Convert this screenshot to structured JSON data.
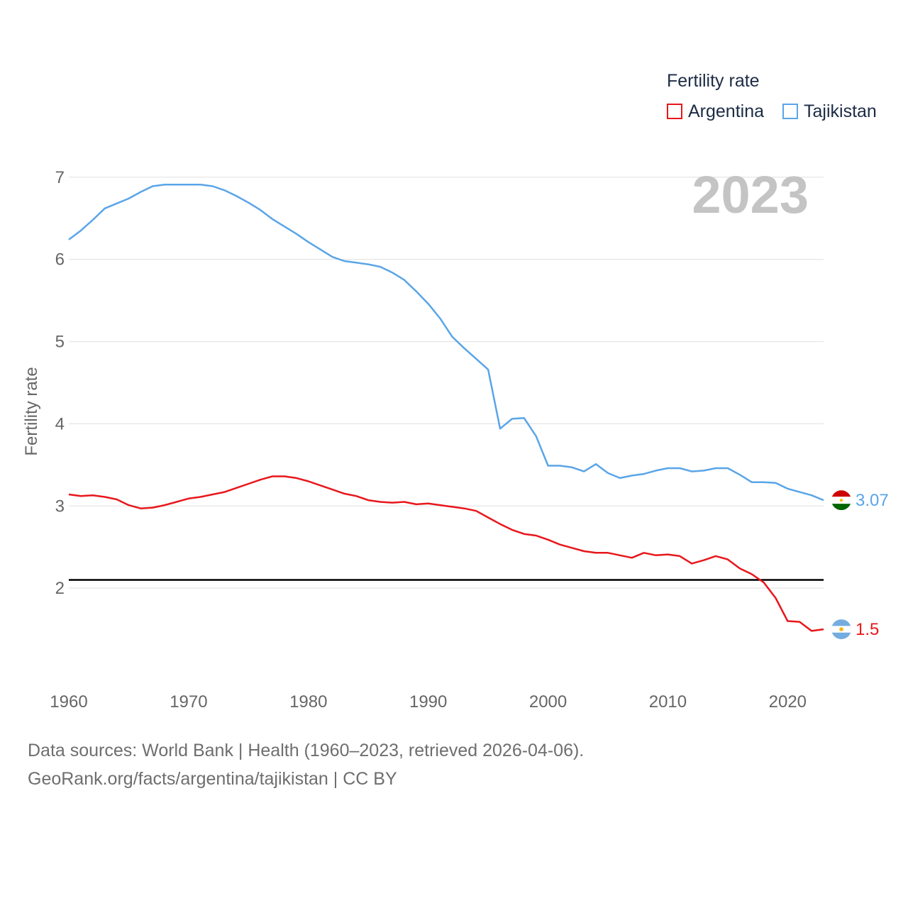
{
  "chart_data": {
    "type": "line",
    "legend_title": "Fertility rate",
    "ylabel": "Fertility rate",
    "xlabel": "",
    "year_label": "2023",
    "xlim": [
      1960,
      2023
    ],
    "ylim": [
      1.0,
      7.3
    ],
    "x_ticks": [
      1960,
      1970,
      1980,
      1990,
      2000,
      2010,
      2020
    ],
    "y_ticks": [
      2,
      3,
      4,
      5,
      6,
      7
    ],
    "reference_line": 2.1,
    "series": [
      {
        "name": "Argentina",
        "color": "#e8171c",
        "flag": "argentina-flag-icon",
        "end_label": "1.5",
        "x": [
          1960,
          1961,
          1962,
          1963,
          1964,
          1965,
          1966,
          1967,
          1968,
          1969,
          1970,
          1971,
          1972,
          1973,
          1974,
          1975,
          1976,
          1977,
          1978,
          1979,
          1980,
          1981,
          1982,
          1983,
          1984,
          1985,
          1986,
          1987,
          1988,
          1989,
          1990,
          1991,
          1992,
          1993,
          1994,
          1995,
          1996,
          1997,
          1998,
          1999,
          2000,
          2001,
          2002,
          2003,
          2004,
          2005,
          2006,
          2007,
          2008,
          2009,
          2010,
          2011,
          2012,
          2013,
          2014,
          2015,
          2016,
          2017,
          2018,
          2019,
          2020,
          2021,
          2022,
          2023
        ],
        "values": [
          3.14,
          3.12,
          3.13,
          3.11,
          3.08,
          3.01,
          2.97,
          2.98,
          3.01,
          3.05,
          3.09,
          3.11,
          3.14,
          3.17,
          3.22,
          3.27,
          3.32,
          3.36,
          3.36,
          3.34,
          3.3,
          3.25,
          3.2,
          3.15,
          3.12,
          3.07,
          3.05,
          3.04,
          3.05,
          3.02,
          3.03,
          3.01,
          2.99,
          2.97,
          2.94,
          2.86,
          2.78,
          2.71,
          2.66,
          2.64,
          2.59,
          2.53,
          2.49,
          2.45,
          2.43,
          2.43,
          2.4,
          2.37,
          2.43,
          2.4,
          2.41,
          2.39,
          2.3,
          2.34,
          2.39,
          2.35,
          2.24,
          2.17,
          2.07,
          1.88,
          1.6,
          1.59,
          1.48,
          1.5
        ]
      },
      {
        "name": "Tajikistan",
        "color": "#5aa5e8",
        "flag": "tajikistan-flag-icon",
        "end_label": "3.07",
        "x": [
          1960,
          1961,
          1962,
          1963,
          1964,
          1965,
          1966,
          1967,
          1968,
          1969,
          1970,
          1971,
          1972,
          1973,
          1974,
          1975,
          1976,
          1977,
          1978,
          1979,
          1980,
          1981,
          1982,
          1983,
          1984,
          1985,
          1986,
          1987,
          1988,
          1989,
          1990,
          1991,
          1992,
          1993,
          1994,
          1995,
          1996,
          1997,
          1998,
          1999,
          2000,
          2001,
          2002,
          2003,
          2004,
          2005,
          2006,
          2007,
          2008,
          2009,
          2010,
          2011,
          2012,
          2013,
          2014,
          2015,
          2016,
          2017,
          2018,
          2019,
          2020,
          2021,
          2022,
          2023
        ],
        "values": [
          6.24,
          6.35,
          6.48,
          6.62,
          6.68,
          6.74,
          6.82,
          6.89,
          6.91,
          6.91,
          6.91,
          6.91,
          6.89,
          6.84,
          6.77,
          6.69,
          6.6,
          6.49,
          6.4,
          6.31,
          6.21,
          6.12,
          6.03,
          5.98,
          5.96,
          5.94,
          5.91,
          5.84,
          5.75,
          5.61,
          5.46,
          5.28,
          5.06,
          4.92,
          4.79,
          4.66,
          3.94,
          4.06,
          4.07,
          3.85,
          3.49,
          3.49,
          3.47,
          3.42,
          3.51,
          3.4,
          3.34,
          3.37,
          3.39,
          3.43,
          3.46,
          3.46,
          3.42,
          3.43,
          3.46,
          3.46,
          3.38,
          3.29,
          3.29,
          3.28,
          3.21,
          3.17,
          3.13,
          3.07
        ]
      }
    ]
  },
  "footer": {
    "line1": "Data sources: World Bank | Health (1960–2023, retrieved 2026-04-06).",
    "line2": "GeoRank.org/facts/argentina/tajikistan | CC BY"
  }
}
